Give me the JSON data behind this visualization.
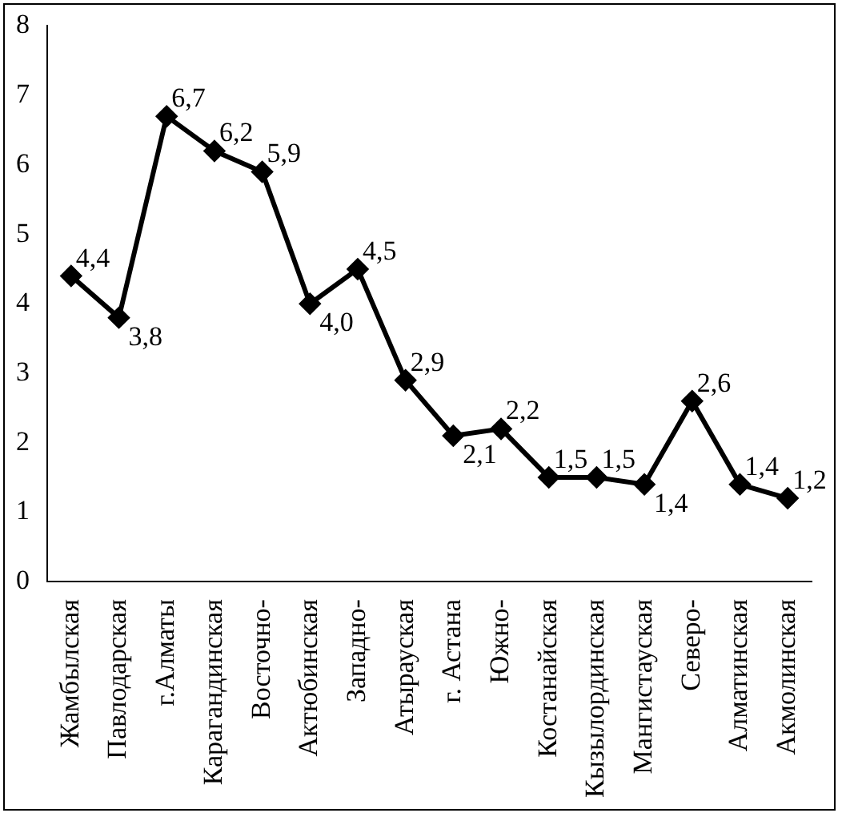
{
  "chart_data": {
    "type": "line",
    "categories": [
      "Жамбылская",
      "Павлодарская",
      "г.Алматы",
      "Карагандинская",
      "Восточно-",
      "Актюбинская",
      "Западно-",
      "Атырауская",
      "г. Астана",
      "Южно-",
      "Костанайская",
      "Кызылординская",
      "Мангистауская",
      "Северо-",
      "Алматинская",
      "Акмолинская"
    ],
    "series": [
      {
        "color": "#000000",
        "values": [
          4.4,
          3.8,
          6.7,
          6.2,
          5.9,
          4.0,
          4.5,
          2.9,
          2.1,
          2.2,
          1.5,
          1.5,
          1.4,
          2.6,
          1.4,
          1.2
        ],
        "value_labels": [
          "4,4",
          "3,8",
          "6,7",
          "6,2",
          "5,9",
          "4,0",
          "4,5",
          "2,9",
          "2,1",
          "2,2",
          "1,5",
          "1,5",
          "1,4",
          "2,6",
          "1,4",
          "1,2"
        ]
      }
    ],
    "ylim": [
      0,
      8
    ],
    "yticks": [
      0,
      1,
      2,
      3,
      4,
      5,
      6,
      7,
      8
    ],
    "grid": false,
    "legend": false,
    "marker": "diamond",
    "line_style": "solid"
  }
}
